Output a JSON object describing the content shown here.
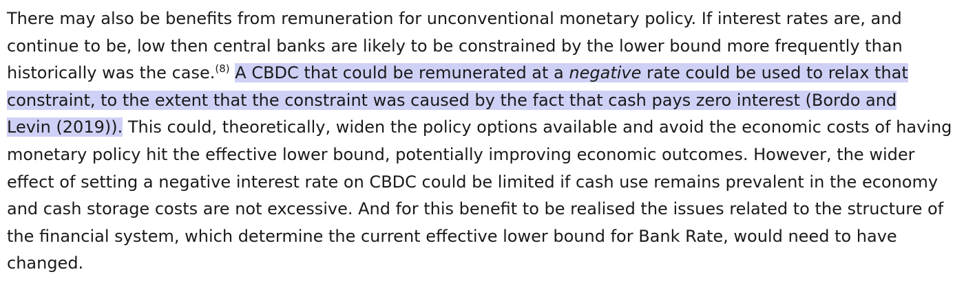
{
  "paragraph": {
    "line1": "There may also be benefits from remuneration for unconventional monetary policy. If interest rates are, and",
    "line2": "continue to be, low then central banks are likely to be constrained by the lower bound more frequently than",
    "line3_plain": "historically was the case.",
    "footnote_ref": "(8)",
    "line3_highlight_a": "A CBDC that could be remunerated at a",
    "line3_highlight_em": "negative",
    "line3_highlight_b": "rate could be used to relax that",
    "line4_highlight": "constraint, to the extent that the constraint was caused by the fact that cash pays zero interest (Bordo and",
    "line5_highlight": "Levin (2019)).",
    "line5_plain": "This could, theoretically, widen the policy options available and avoid the economic costs of having",
    "line6": "monetary policy hit the effective lower bound, potentially improving economic outcomes. However, the wider",
    "line7": "effect of setting a negative interest rate on CBDC could be limited if cash use remains prevalent in the economy",
    "line8": "and cash storage costs are not excessive. And for this benefit to be realised the issues related to the structure of",
    "line9": "the financial system, which determine the current effective lower bound for Bank Rate, would need to have",
    "line10": "changed."
  },
  "colors": {
    "highlight": "#cfd0f5",
    "text": "#1a1a1a"
  }
}
